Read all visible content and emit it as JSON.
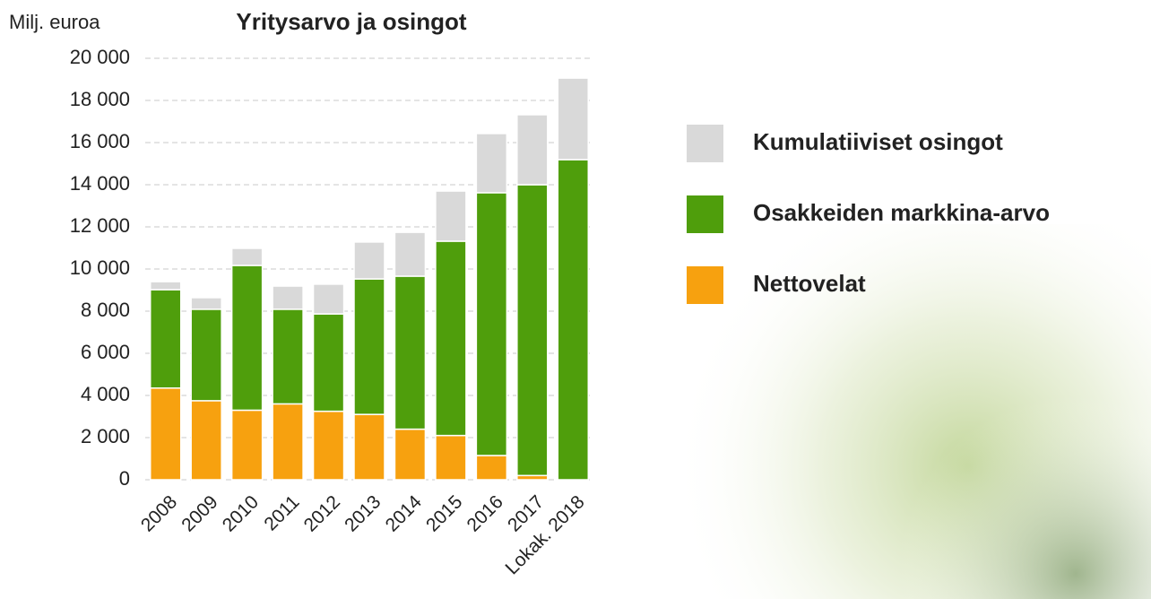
{
  "chart_data": {
    "type": "stacked_bar",
    "title": "Yritysarvo ja osingot",
    "y_label": "Milj. euroa",
    "categories": [
      "2008",
      "2009",
      "2010",
      "2011",
      "2012",
      "2013",
      "2014",
      "2015",
      "2016",
      "2017",
      "Lokak. 2018"
    ],
    "series": [
      {
        "name": "Nettovelat",
        "color": "#f7a10f",
        "values": [
          4350,
          3750,
          3300,
          3600,
          3250,
          3100,
          2400,
          2100,
          1150,
          200,
          0
        ]
      },
      {
        "name": "Osakkeiden markkina-arvo",
        "color": "#4f9e0c",
        "values": [
          4670,
          4340,
          6870,
          4490,
          4620,
          6430,
          7260,
          9220,
          12470,
          13800,
          15190
        ]
      },
      {
        "name": "Kumulatiiviset osingot",
        "color": "#d9d9d9",
        "values": [
          380,
          550,
          810,
          1100,
          1410,
          1750,
          2080,
          2380,
          2810,
          3320,
          3870
        ]
      }
    ],
    "ylim": [
      0,
      20000
    ],
    "yticks": [
      0,
      {
        "value": 2000,
        "label": "2 000"
      },
      {
        "value": 4000,
        "label": "4 000"
      },
      {
        "value": 6000,
        "label": "6 000"
      },
      {
        "value": 8000,
        "label": "8 000"
      },
      {
        "value": 10000,
        "label": "10 000"
      },
      {
        "value": 12000,
        "label": "12 000"
      },
      {
        "value": 14000,
        "label": "14 000"
      },
      {
        "value": 16000,
        "label": "16 000"
      },
      {
        "value": 18000,
        "label": "18 000"
      },
      {
        "value": 20000,
        "label": "20 000"
      }
    ],
    "grid": true,
    "legend": "right"
  }
}
